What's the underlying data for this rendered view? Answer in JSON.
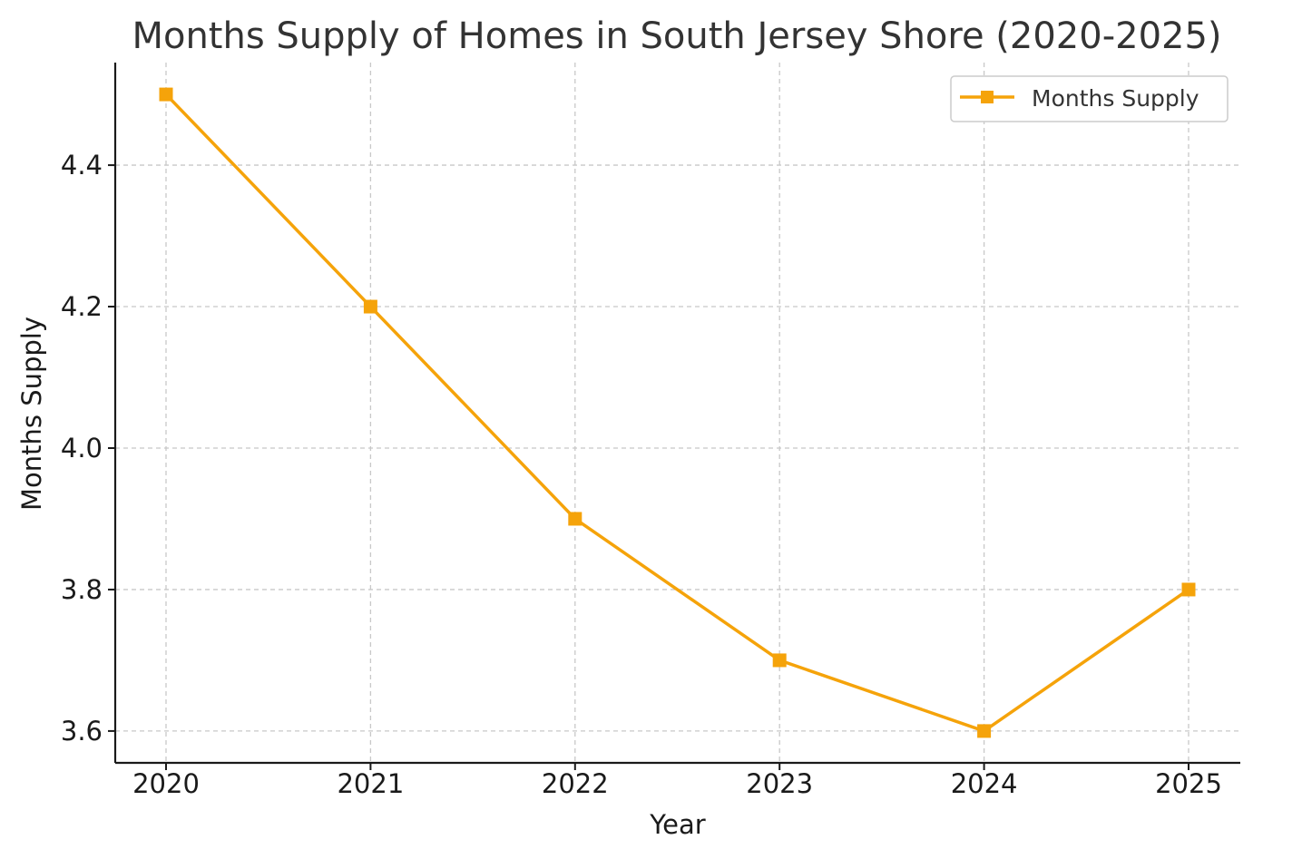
{
  "chart_data": {
    "type": "line",
    "title": "Months Supply of Homes in South Jersey Shore (2020-2025)",
    "xlabel": "Year",
    "ylabel": "Months Supply",
    "categories": [
      "2020",
      "2021",
      "2022",
      "2023",
      "2024",
      "2025"
    ],
    "series": [
      {
        "name": "Months Supply",
        "values": [
          4.5,
          4.2,
          3.9,
          3.7,
          3.6,
          3.8
        ],
        "color": "#f5a30a",
        "marker": "square"
      }
    ],
    "yticks": [
      "3.6",
      "3.8",
      "4.0",
      "4.2",
      "4.4"
    ],
    "ylim": [
      3.555,
      4.545
    ],
    "grid": true,
    "legend_position": "top-right"
  }
}
